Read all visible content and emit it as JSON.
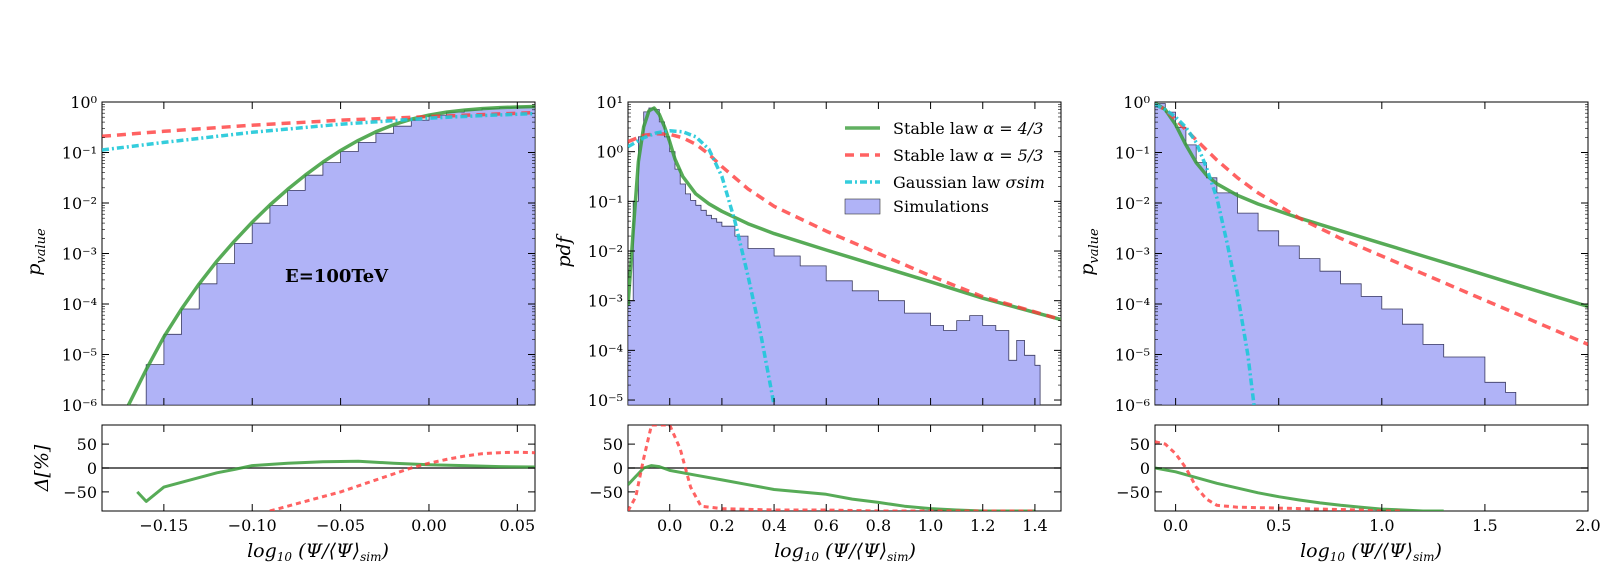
{
  "chart_data": [
    {
      "type": "line",
      "panel": "left",
      "annotation": "E=100TeV",
      "ylabel": "p_value",
      "xlabel": "log10(Ψ/⟨Ψ⟩sim)",
      "xlim": [
        -0.185,
        0.06
      ],
      "x_ticks": [
        {
          "value": -0.15,
          "label": "−0.15"
        },
        {
          "value": -0.1,
          "label": "−0.10"
        },
        {
          "value": -0.05,
          "label": "−0.05"
        },
        {
          "value": 0.0,
          "label": "0.00"
        },
        {
          "value": 0.05,
          "label": "0.05"
        }
      ],
      "y_log_range": [
        -6,
        0
      ],
      "y_ticks": [
        "10⁰",
        "10⁻¹",
        "10⁻²",
        "10⁻³",
        "10⁻⁴",
        "10⁻⁵",
        "10⁻⁶"
      ],
      "series": [
        {
          "name": "Simulations",
          "kind": "hist",
          "x": [
            -0.165,
            -0.16,
            -0.15,
            -0.14,
            -0.13,
            -0.12,
            -0.11,
            -0.1,
            -0.09,
            -0.08,
            -0.07,
            -0.06,
            -0.05,
            -0.04,
            -0.03,
            -0.02,
            -0.01,
            0.0,
            0.01,
            0.02,
            0.03,
            0.04,
            0.05,
            0.06
          ],
          "log10y": [
            -6,
            -5.2,
            -4.6,
            -4.1,
            -3.6,
            -3.2,
            -2.8,
            -2.4,
            -2.05,
            -1.75,
            -1.45,
            -1.2,
            -0.98,
            -0.8,
            -0.62,
            -0.48,
            -0.36,
            -0.26,
            -0.2,
            -0.16,
            -0.13,
            -0.11,
            -0.1,
            -0.09
          ]
        },
        {
          "name": "Stable law α = 4/3",
          "x": [
            -0.17,
            -0.16,
            -0.15,
            -0.14,
            -0.13,
            -0.12,
            -0.11,
            -0.1,
            -0.09,
            -0.08,
            -0.07,
            -0.06,
            -0.05,
            -0.04,
            -0.03,
            -0.02,
            -0.01,
            0.0,
            0.01,
            0.02,
            0.03,
            0.04,
            0.05,
            0.06
          ],
          "log10y": [
            -6,
            -5.3,
            -4.65,
            -4.1,
            -3.6,
            -3.15,
            -2.75,
            -2.38,
            -2.04,
            -1.73,
            -1.45,
            -1.19,
            -0.96,
            -0.76,
            -0.59,
            -0.45,
            -0.34,
            -0.26,
            -0.2,
            -0.16,
            -0.13,
            -0.11,
            -0.1,
            -0.09
          ]
        },
        {
          "name": "Stable law α = 5/3",
          "x": [
            -0.185,
            -0.15,
            -0.1,
            -0.05,
            0.0,
            0.03,
            0.06
          ],
          "log10y": [
            -0.68,
            -0.58,
            -0.46,
            -0.36,
            -0.29,
            -0.25,
            -0.21
          ]
        },
        {
          "name": "Gaussian law σsim",
          "x": [
            -0.185,
            -0.15,
            -0.1,
            -0.05,
            0.0,
            0.03,
            0.06
          ],
          "log10y": [
            -0.95,
            -0.8,
            -0.6,
            -0.44,
            -0.32,
            -0.27,
            -0.23
          ]
        }
      ],
      "residual": {
        "ylabel": "Δ[%]",
        "ylim": [
          -90,
          90
        ],
        "y_ticks": [
          50,
          0,
          -50
        ],
        "series": [
          {
            "name": "Stable law α = 4/3",
            "x": [
              -0.165,
              -0.16,
              -0.15,
              -0.14,
              -0.13,
              -0.12,
              -0.11,
              -0.1,
              -0.08,
              -0.06,
              -0.04,
              -0.02,
              0.0,
              0.02,
              0.04,
              0.06
            ],
            "y": [
              -50,
              -70,
              -40,
              -30,
              -20,
              -10,
              -3,
              5,
              10,
              13,
              14,
              10,
              7,
              5,
              3,
              2
            ]
          },
          {
            "name": "Stable law α = 5/3",
            "x": [
              -0.09,
              -0.07,
              -0.05,
              -0.03,
              -0.01,
              0.0,
              0.01,
              0.02,
              0.03,
              0.04,
              0.05,
              0.06
            ],
            "y": [
              -90,
              -70,
              -50,
              -25,
              0,
              10,
              18,
              25,
              30,
              32,
              33,
              32
            ]
          }
        ]
      }
    },
    {
      "type": "line",
      "panel": "middle",
      "ylabel": "pdf",
      "xlabel": "log10(Ψ/⟨Ψ⟩sim)",
      "xlim": [
        -0.16,
        1.5
      ],
      "x_ticks": [
        {
          "value": 0.0,
          "label": "0.0"
        },
        {
          "value": 0.2,
          "label": "0.2"
        },
        {
          "value": 0.4,
          "label": "0.4"
        },
        {
          "value": 0.6,
          "label": "0.6"
        },
        {
          "value": 0.8,
          "label": "0.8"
        },
        {
          "value": 1.0,
          "label": "1.0"
        },
        {
          "value": 1.2,
          "label": "1.2"
        },
        {
          "value": 1.4,
          "label": "1.4"
        }
      ],
      "y_log_range": [
        -5.1,
        1
      ],
      "y_ticks": [
        "10¹",
        "10⁰",
        "10⁻¹",
        "10⁻²",
        "10⁻³",
        "10⁻⁴",
        "10⁻⁵"
      ],
      "legend": {
        "position": "top-right",
        "entries": [
          {
            "label": "Stable law",
            "math": "α = 4/3",
            "style": "solid-green"
          },
          {
            "label": "Stable law",
            "math": "α = 5/3",
            "style": "dashed-red"
          },
          {
            "label": "Gaussian law",
            "math": "σsim",
            "style": "dashdot-cyan"
          },
          {
            "label": "Simulations",
            "math": "",
            "style": "patch-blue"
          }
        ]
      },
      "series": [
        {
          "name": "Simulations",
          "kind": "hist",
          "x": [
            -0.16,
            -0.14,
            -0.12,
            -0.1,
            -0.08,
            -0.06,
            -0.04,
            -0.02,
            0.0,
            0.02,
            0.04,
            0.06,
            0.08,
            0.1,
            0.12,
            0.14,
            0.16,
            0.18,
            0.2,
            0.25,
            0.3,
            0.4,
            0.5,
            0.6,
            0.7,
            0.8,
            0.9,
            1.0,
            1.05,
            1.1,
            1.15,
            1.2,
            1.25,
            1.3,
            1.33,
            1.36,
            1.4,
            1.42
          ],
          "log10y": [
            -3.0,
            -1.0,
            0.3,
            0.8,
            0.88,
            0.85,
            0.6,
            0.3,
            0.0,
            -0.35,
            -0.65,
            -0.85,
            -0.98,
            -1.08,
            -1.18,
            -1.28,
            -1.35,
            -1.42,
            -1.5,
            -1.7,
            -1.95,
            -2.1,
            -2.3,
            -2.6,
            -2.8,
            -3.0,
            -3.25,
            -3.5,
            -3.6,
            -3.4,
            -3.3,
            -3.5,
            -3.6,
            -4.2,
            -3.8,
            -4.1,
            -4.3,
            -5.1
          ]
        },
        {
          "name": "Stable law α = 4/3",
          "x": [
            -0.16,
            -0.14,
            -0.12,
            -0.1,
            -0.08,
            -0.06,
            -0.04,
            -0.02,
            0.0,
            0.02,
            0.05,
            0.1,
            0.15,
            0.2,
            0.3,
            0.4,
            0.6,
            0.8,
            1.0,
            1.2,
            1.5
          ],
          "log10y": [
            -3.1,
            -1.6,
            -0.2,
            0.5,
            0.82,
            0.88,
            0.75,
            0.5,
            0.2,
            -0.15,
            -0.5,
            -0.85,
            -1.05,
            -1.2,
            -1.45,
            -1.65,
            -1.98,
            -2.3,
            -2.62,
            -2.95,
            -3.38
          ]
        },
        {
          "name": "Stable law α = 5/3",
          "x": [
            -0.16,
            -0.1,
            -0.05,
            0.0,
            0.05,
            0.1,
            0.15,
            0.2,
            0.3,
            0.4,
            0.6,
            0.8,
            1.0,
            1.2,
            1.5
          ],
          "log10y": [
            0.2,
            0.33,
            0.36,
            0.35,
            0.28,
            0.15,
            -0.05,
            -0.3,
            -0.75,
            -1.1,
            -1.6,
            -2.05,
            -2.5,
            -2.92,
            -3.38
          ]
        },
        {
          "name": "Gaussian law σsim",
          "x": [
            -0.16,
            -0.1,
            -0.05,
            0.0,
            0.05,
            0.1,
            0.15,
            0.2,
            0.25,
            0.3,
            0.35,
            0.4
          ],
          "log10y": [
            0.1,
            0.28,
            0.38,
            0.42,
            0.4,
            0.3,
            0.05,
            -0.5,
            -1.4,
            -2.5,
            -3.7,
            -5.1
          ]
        }
      ],
      "residual": {
        "ylim": [
          -90,
          90
        ],
        "y_ticks": [
          50,
          0,
          -50
        ],
        "series": [
          {
            "name": "Stable law α = 4/3",
            "x": [
              -0.16,
              -0.1,
              -0.07,
              -0.04,
              0.0,
              0.1,
              0.2,
              0.3,
              0.4,
              0.5,
              0.6,
              0.7,
              0.8,
              0.9,
              1.0,
              1.1,
              1.2,
              1.3,
              1.4
            ],
            "y": [
              -35,
              0,
              5,
              3,
              -5,
              -15,
              -25,
              -35,
              -45,
              -50,
              -55,
              -65,
              -72,
              -80,
              -85,
              -88,
              -90,
              -90,
              -90
            ]
          },
          {
            "name": "Stable law α = 5/3",
            "x": [
              -0.16,
              -0.13,
              -0.1,
              -0.07,
              -0.04,
              -0.02,
              0.0,
              0.04,
              0.08,
              0.12,
              0.2,
              0.4,
              0.6,
              0.8,
              1.0,
              1.2,
              1.4
            ],
            "y": [
              -90,
              -60,
              20,
              90,
              95,
              95,
              90,
              40,
              -40,
              -80,
              -85,
              -88,
              -88,
              -90,
              -90,
              -90,
              -90
            ]
          }
        ]
      }
    },
    {
      "type": "line",
      "panel": "right",
      "ylabel": "p_value",
      "xlabel": "log10(Ψ/⟨Ψ⟩sim)",
      "xlim": [
        -0.1,
        2.0
      ],
      "x_ticks": [
        {
          "value": 0.0,
          "label": "0.0"
        },
        {
          "value": 0.5,
          "label": "0.5"
        },
        {
          "value": 1.0,
          "label": "1.0"
        },
        {
          "value": 1.5,
          "label": "1.5"
        },
        {
          "value": 2.0,
          "label": "2.0"
        }
      ],
      "y_log_range": [
        -6,
        0
      ],
      "y_ticks": [
        "10⁰",
        "10⁻¹",
        "10⁻²",
        "10⁻³",
        "10⁻⁴",
        "10⁻⁵",
        "10⁻⁶"
      ],
      "series": [
        {
          "name": "Simulations",
          "kind": "hist",
          "x": [
            -0.1,
            -0.05,
            0.0,
            0.05,
            0.1,
            0.15,
            0.2,
            0.3,
            0.4,
            0.5,
            0.6,
            0.7,
            0.8,
            0.9,
            1.0,
            1.1,
            1.2,
            1.3,
            1.4,
            1.5,
            1.6,
            1.65
          ],
          "log10y": [
            -0.03,
            -0.2,
            -0.5,
            -0.85,
            -1.2,
            -1.5,
            -1.8,
            -2.2,
            -2.55,
            -2.85,
            -3.1,
            -3.35,
            -3.6,
            -3.85,
            -4.1,
            -4.4,
            -4.8,
            -5.05,
            -5.05,
            -5.55,
            -5.75,
            -6
          ]
        },
        {
          "name": "Stable law α = 4/3",
          "x": [
            -0.1,
            -0.05,
            0.0,
            0.05,
            0.1,
            0.15,
            0.2,
            0.3,
            0.4,
            0.6,
            0.8,
            1.0,
            1.2,
            1.4,
            1.6,
            1.8,
            2.0
          ],
          "log10y": [
            -0.02,
            -0.15,
            -0.45,
            -0.85,
            -1.2,
            -1.45,
            -1.62,
            -1.85,
            -2.02,
            -2.3,
            -2.55,
            -2.8,
            -3.05,
            -3.3,
            -3.55,
            -3.8,
            -4.05
          ]
        },
        {
          "name": "Stable law α = 5/3",
          "x": [
            -0.1,
            -0.05,
            0.0,
            0.1,
            0.2,
            0.3,
            0.4,
            0.6,
            0.8,
            1.0,
            1.2,
            1.4,
            1.6,
            1.8,
            2.0
          ],
          "log10y": [
            -0.05,
            -0.15,
            -0.35,
            -0.75,
            -1.15,
            -1.5,
            -1.8,
            -2.3,
            -2.7,
            -3.05,
            -3.4,
            -3.75,
            -4.1,
            -4.45,
            -4.8
          ]
        },
        {
          "name": "Gaussian law σsim",
          "x": [
            -0.1,
            -0.05,
            0.0,
            0.05,
            0.1,
            0.15,
            0.2,
            0.25,
            0.3,
            0.35,
            0.38
          ],
          "log10y": [
            -0.05,
            -0.15,
            -0.3,
            -0.5,
            -0.8,
            -1.3,
            -1.9,
            -2.8,
            -3.8,
            -5.0,
            -6.0
          ]
        }
      ],
      "residual": {
        "ylim": [
          -90,
          90
        ],
        "y_ticks": [
          50,
          0,
          -50
        ],
        "series": [
          {
            "name": "Stable law α = 4/3",
            "x": [
              -0.1,
              0.0,
              0.1,
              0.2,
              0.3,
              0.4,
              0.5,
              0.6,
              0.7,
              0.8,
              0.9,
              1.0,
              1.1,
              1.2,
              1.3
            ],
            "y": [
              0,
              -8,
              -20,
              -32,
              -42,
              -52,
              -60,
              -67,
              -73,
              -78,
              -82,
              -86,
              -88,
              -90,
              -90
            ]
          },
          {
            "name": "Stable law α = 5/3",
            "x": [
              -0.1,
              -0.05,
              0.0,
              0.05,
              0.1,
              0.15,
              0.2,
              0.3,
              0.5,
              0.7,
              0.9,
              1.0,
              1.1
            ],
            "y": [
              55,
              50,
              30,
              0,
              -40,
              -65,
              -78,
              -82,
              -84,
              -86,
              -88,
              -90,
              -90
            ]
          }
        ]
      }
    }
  ]
}
